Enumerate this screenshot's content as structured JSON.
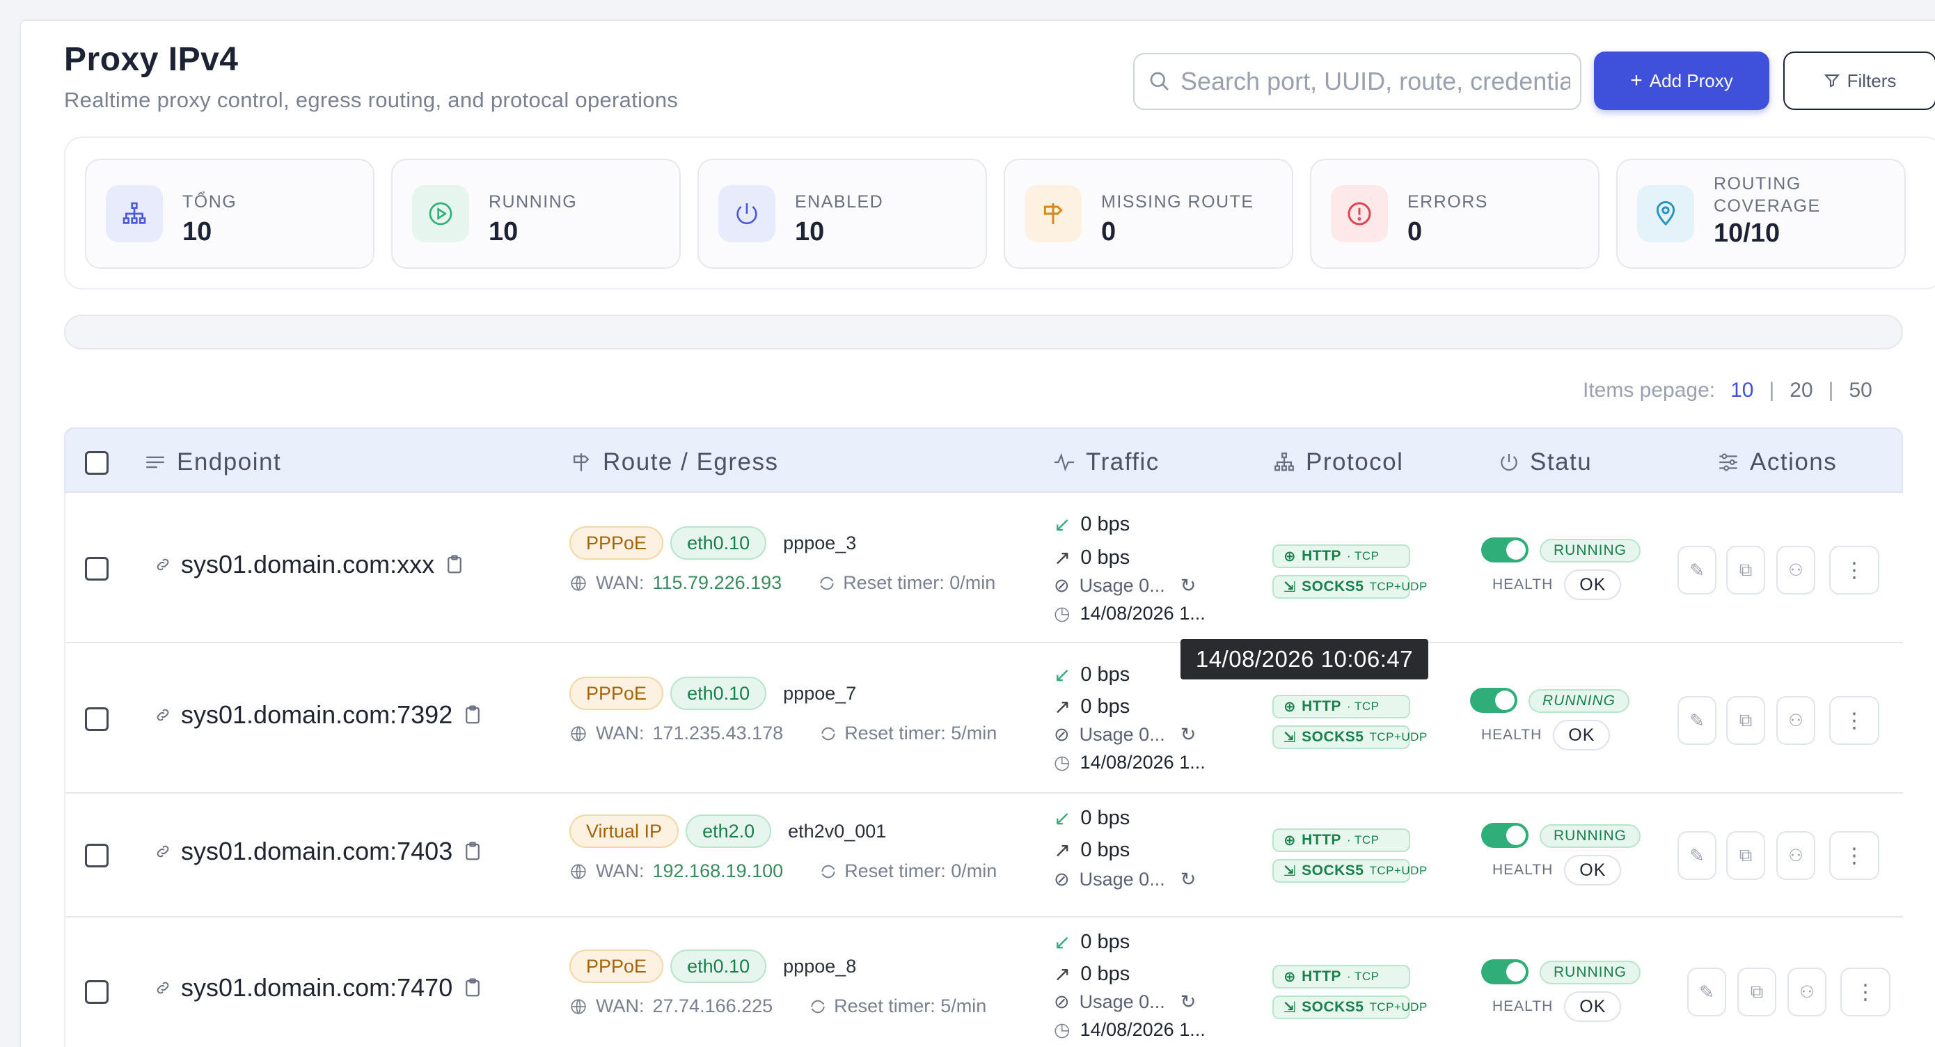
{
  "header": {
    "title": "Proxy IPv4",
    "subtitle": "Realtime proxy control, egress routing, and protocal operations",
    "search_placeholder": "Search port, UUID, route, credentials",
    "add_label": "Add Proxy",
    "filters_label": "Filters"
  },
  "stats": [
    {
      "label": "TỔNG",
      "value": "10"
    },
    {
      "label": "RUNNING",
      "value": "10"
    },
    {
      "label": "ENABLED",
      "value": "10"
    },
    {
      "label": "MISSING ROUTE",
      "value": "0"
    },
    {
      "label": "ERRORS",
      "value": "0"
    },
    {
      "label": "ROUTING COVERAGE",
      "value": "10/10"
    }
  ],
  "pager": {
    "label": "Items pepage:",
    "options": [
      "10",
      "20",
      "50"
    ],
    "separator": "|"
  },
  "columns": {
    "endpoint": "Endpoint",
    "route": "Route / Egress",
    "traffic": "Traffic",
    "protocol": "Protocol",
    "status": "Statu",
    "actions": "Actions"
  },
  "rows": [
    {
      "endpoint": "sys01.domain.com:xxx",
      "type": "PPPoE",
      "iface": "eth0.10",
      "name": "pppoe_3",
      "wan_label": "WAN:",
      "wan": "115.79.226.193",
      "reset": "Reset timer: 0/min",
      "down": "0 bps",
      "up": "0 bps",
      "usage": "Usage 0...",
      "time": "14/08/2026 1...",
      "http": "HTTP",
      "http_sub": "· TCP",
      "socks": "SOCKS5",
      "socks_sub": "TCP+UDP",
      "status": "RUNNING",
      "health_label": "HEALTH",
      "health": "OK"
    },
    {
      "endpoint": "sys01.domain.com:7392",
      "type": "PPPoE",
      "iface": "eth0.10",
      "name": "pppoe_7",
      "wan_label": "WAN:",
      "wan": "171.235.43.178",
      "reset": "Reset timer: 5/min",
      "down": "0 bps",
      "up": "0 bps",
      "usage": "Usage 0...",
      "time": "14/08/2026 1...",
      "http": "HTTP",
      "http_sub": "· TCP",
      "socks": "SOCKS5",
      "socks_sub": "TCP+UDP",
      "status": "RUNNING",
      "health_label": "HEALTH",
      "health": "OK"
    },
    {
      "endpoint": "sys01.domain.com:7403",
      "type": "Virtual IP",
      "iface": "eth2.0",
      "name": "eth2v0_001",
      "wan_label": "WAN:",
      "wan": "192.168.19.100",
      "reset": "Reset timer: 0/min",
      "down": "0 bps",
      "up": "0 bps",
      "usage": "Usage 0...",
      "time": "",
      "http": "HTTP",
      "http_sub": "· TCP",
      "socks": "SOCKS5",
      "socks_sub": "TCP+UDP",
      "status": "RUNNING",
      "health_label": "HEALTH",
      "health": "OK"
    },
    {
      "endpoint": "sys01.domain.com:7470",
      "type": "PPPoE",
      "iface": "eth0.10",
      "name": "pppoe_8",
      "wan_label": "WAN:",
      "wan": "27.74.166.225",
      "reset": "Reset timer: 5/min",
      "down": "0 bps",
      "up": "0 bps",
      "usage": "Usage 0...",
      "time": "14/08/2026 1...",
      "http": "HTTP",
      "http_sub": "· TCP",
      "socks": "SOCKS5",
      "socks_sub": "TCP+UDP",
      "status": "RUNNING",
      "health_label": "HEALTH",
      "health": "OK"
    }
  ],
  "tooltip": "14/08/2026 10:06:47",
  "colors": {
    "accent": "#3f51db",
    "running": "#2fae7a",
    "header_bg": "#e9effb"
  }
}
